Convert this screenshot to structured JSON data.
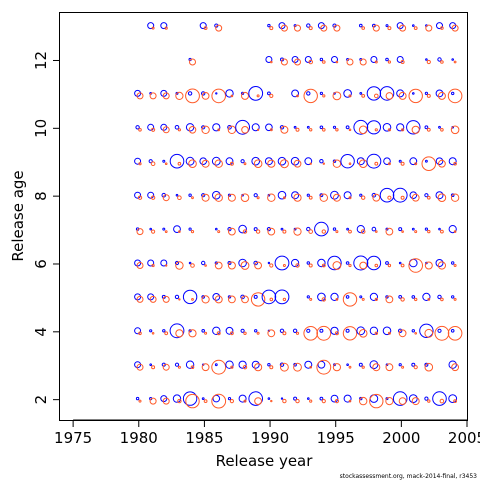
{
  "chart_data": {
    "type": "scatter",
    "title": "",
    "xlabel": "Release year",
    "ylabel": "Release age",
    "xlim": [
      1974,
      2005
    ],
    "ylim": [
      1.4,
      13.4
    ],
    "xticks": [
      1975,
      1980,
      1985,
      1990,
      1995,
      2000,
      2005
    ],
    "yticks": [
      2,
      4,
      6,
      8,
      10,
      12
    ],
    "ytick_labels": [
      "2",
      "4",
      "6",
      "8",
      "10",
      "12"
    ],
    "grid": false,
    "legend": "none",
    "series": [
      {
        "color": "#0000ff",
        "marker": "open-circle"
      },
      {
        "color": "#ff5a28",
        "marker": "open-circle"
      }
    ],
    "note": "Bubble plot of releases by year (1980-2004) and age (2-13); point area scales with number released, blue and orange-red markers offset slightly per cell.",
    "footnote": "stockassessment.org, mack-2014-final, r3453"
  }
}
